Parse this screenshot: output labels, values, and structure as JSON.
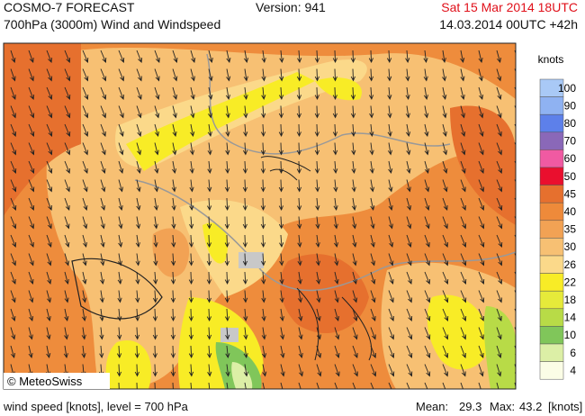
{
  "header": {
    "title": "COSMO-7 FORECAST",
    "subtitle": "700hPa (3000m) Wind and Windspeed",
    "version": "Version: 941",
    "valid_time": "Sat 15 Mar 2014 18UTC",
    "run_time": "14.03.2014 00UTC +42h"
  },
  "map": {
    "copyright": "© MeteoSwiss"
  },
  "legend": {
    "title": "knots",
    "items": [
      {
        "label": 100,
        "color": "#a9c9f6"
      },
      {
        "label": 90,
        "color": "#8fb2f2"
      },
      {
        "label": 80,
        "color": "#5d80ea"
      },
      {
        "label": 70,
        "color": "#8a68b8"
      },
      {
        "label": 60,
        "color": "#f05aa2"
      },
      {
        "label": 50,
        "color": "#ea0f2e"
      },
      {
        "label": 45,
        "color": "#e6702e"
      },
      {
        "label": 40,
        "color": "#ee8a3a"
      },
      {
        "label": 35,
        "color": "#f2a254"
      },
      {
        "label": 30,
        "color": "#f7c073"
      },
      {
        "label": 26,
        "color": "#fbd98a"
      },
      {
        "label": 22,
        "color": "#f8ec26"
      },
      {
        "label": 18,
        "color": "#e6ea3a"
      },
      {
        "label": 14,
        "color": "#b8db47"
      },
      {
        "label": 10,
        "color": "#80c65a"
      },
      {
        "label": 6,
        "color": "#dcefa6"
      },
      {
        "label": 4,
        "color": "#fbfde6"
      }
    ]
  },
  "footer": {
    "caption": "wind speed [knots], level = 700 hPa",
    "mean_label": "Mean:",
    "mean": 29.3,
    "max_label": "Max:",
    "max": 43.2,
    "unit": "[knots]"
  }
}
